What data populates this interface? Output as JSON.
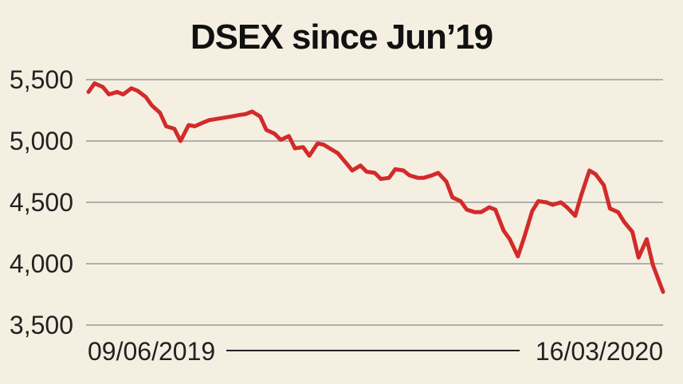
{
  "chart_data": {
    "type": "line",
    "title": "DSEX since Jun’19",
    "xlabel": "",
    "ylabel": "",
    "ylim": [
      3500,
      5500
    ],
    "yticks": [
      {
        "value": 5500,
        "label": "5,500"
      },
      {
        "value": 5000,
        "label": "5,000"
      },
      {
        "value": 4500,
        "label": "4,500"
      },
      {
        "value": 4000,
        "label": "4,000"
      },
      {
        "value": 3500,
        "label": "3,500"
      }
    ],
    "x_start_label": "09/06/2019",
    "x_end_label": "16/03/2020",
    "grid": true,
    "line_color": "#d32a2a",
    "series": [
      {
        "name": "",
        "x": [
          "2019-06-09",
          "2019-06-12",
          "2019-06-16",
          "2019-06-19",
          "2019-06-23",
          "2019-06-26",
          "2019-06-30",
          "2019-07-03",
          "2019-07-07",
          "2019-07-10",
          "2019-07-14",
          "2019-07-17",
          "2019-07-21",
          "2019-07-24",
          "2019-07-28",
          "2019-07-31",
          "2019-08-04",
          "2019-08-07",
          "2019-08-18",
          "2019-08-21",
          "2019-08-25",
          "2019-08-28",
          "2019-09-01",
          "2019-09-04",
          "2019-09-08",
          "2019-09-11",
          "2019-09-15",
          "2019-09-18",
          "2019-09-22",
          "2019-09-25",
          "2019-09-29",
          "2019-10-02",
          "2019-10-06",
          "2019-10-09",
          "2019-10-13",
          "2019-10-16",
          "2019-10-20",
          "2019-10-23",
          "2019-10-27",
          "2019-10-30",
          "2019-11-03",
          "2019-11-06",
          "2019-11-10",
          "2019-11-13",
          "2019-11-17",
          "2019-11-20",
          "2019-11-24",
          "2019-11-27",
          "2019-12-01",
          "2019-12-04",
          "2019-12-08",
          "2019-12-11",
          "2019-12-15",
          "2019-12-18",
          "2019-12-22",
          "2019-12-25",
          "2019-12-29",
          "2020-01-01",
          "2020-01-05",
          "2020-01-08",
          "2020-01-12",
          "2020-01-15",
          "2020-01-19",
          "2020-01-22",
          "2020-01-26",
          "2020-01-29",
          "2020-02-02",
          "2020-02-05",
          "2020-02-09",
          "2020-02-12",
          "2020-02-16",
          "2020-02-19",
          "2020-02-23",
          "2020-02-26",
          "2020-03-01",
          "2020-03-04",
          "2020-03-08",
          "2020-03-11",
          "2020-03-16"
        ],
        "y": [
          5400,
          5470,
          5440,
          5380,
          5400,
          5380,
          5430,
          5410,
          5360,
          5290,
          5230,
          5120,
          5100,
          5000,
          5130,
          5120,
          5150,
          5170,
          5200,
          5210,
          5220,
          5240,
          5200,
          5090,
          5060,
          5010,
          5040,
          4940,
          4950,
          4880,
          4980,
          4970,
          4930,
          4900,
          4820,
          4760,
          4800,
          4750,
          4740,
          4690,
          4700,
          4770,
          4760,
          4720,
          4700,
          4700,
          4720,
          4740,
          4670,
          4540,
          4510,
          4440,
          4420,
          4420,
          4460,
          4440,
          4270,
          4200,
          4060,
          4210,
          4430,
          4510,
          4500,
          4480,
          4500,
          4460,
          4390,
          4560,
          4760,
          4730,
          4640,
          4450,
          4420,
          4340,
          4260,
          4050,
          4200,
          3990,
          3770
        ]
      }
    ]
  }
}
